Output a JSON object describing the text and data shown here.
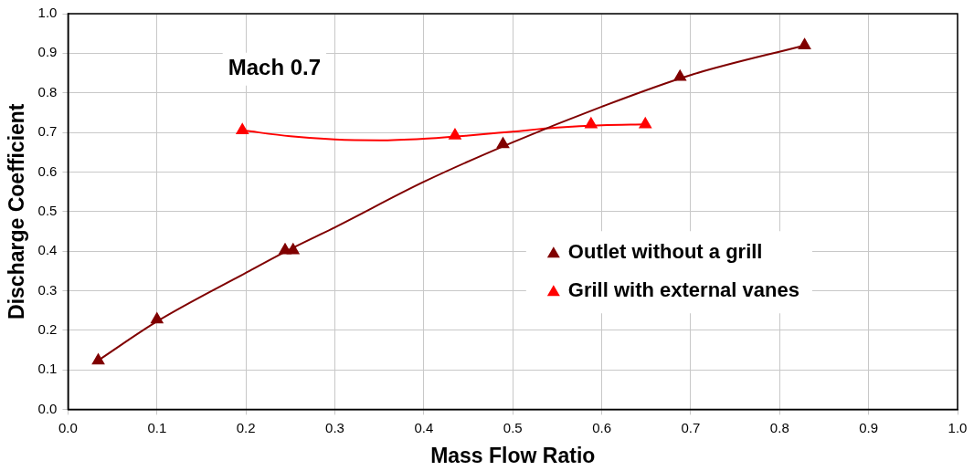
{
  "chart_data": {
    "type": "scatter",
    "xlabel": "Mass Flow Ratio",
    "ylabel": "Discharge Coefficient",
    "annotations": [
      "Mach 0.7"
    ],
    "xlim": [
      0,
      1
    ],
    "xticks": [
      {
        "value": 0,
        "label": "0.0"
      },
      0.1,
      0.2,
      0.3,
      0.4,
      0.5,
      0.6,
      0.7,
      0.8,
      0.9,
      {
        "value": 1,
        "label": "1.0"
      }
    ],
    "ylim": [
      0,
      1
    ],
    "yticks": [
      {
        "value": 0,
        "label": "0.0"
      },
      0.1,
      0.2,
      0.3,
      0.4,
      0.5,
      0.6,
      0.7,
      0.8,
      0.9,
      {
        "value": 1,
        "label": "1.0"
      }
    ],
    "grid": true,
    "legend": "right",
    "marker": "triangle",
    "series": [
      {
        "type": "line",
        "marker": "none",
        "color": "#800000",
        "x": [
          0.035,
          0.1,
          0.2,
          0.25,
          0.3,
          0.4,
          0.5,
          0.6,
          0.7,
          0.828
        ],
        "values": [
          0.125,
          0.222,
          0.345,
          0.405,
          0.46,
          0.575,
          0.675,
          0.765,
          0.845,
          0.92
        ]
      },
      {
        "type": "line",
        "marker": "none",
        "color": "#ff0000",
        "x": [
          0.197,
          0.25,
          0.3,
          0.35,
          0.4,
          0.45,
          0.5,
          0.55,
          0.6,
          0.649
        ],
        "values": [
          0.705,
          0.69,
          0.682,
          0.68,
          0.684,
          0.692,
          0.702,
          0.712,
          0.718,
          0.72
        ]
      },
      {
        "name": "Outlet without a grill",
        "color": "#800000",
        "x": [
          0.034,
          0.1,
          0.244,
          0.253,
          0.489,
          0.688,
          0.828
        ],
        "values": [
          0.123,
          0.227,
          0.402,
          0.402,
          0.67,
          0.84,
          0.92
        ]
      },
      {
        "name": "Grill with external vanes",
        "color": "#ff0000",
        "x": [
          0.196,
          0.435,
          0.588,
          0.649
        ],
        "values": [
          0.705,
          0.692,
          0.72,
          0.72
        ]
      }
    ]
  }
}
